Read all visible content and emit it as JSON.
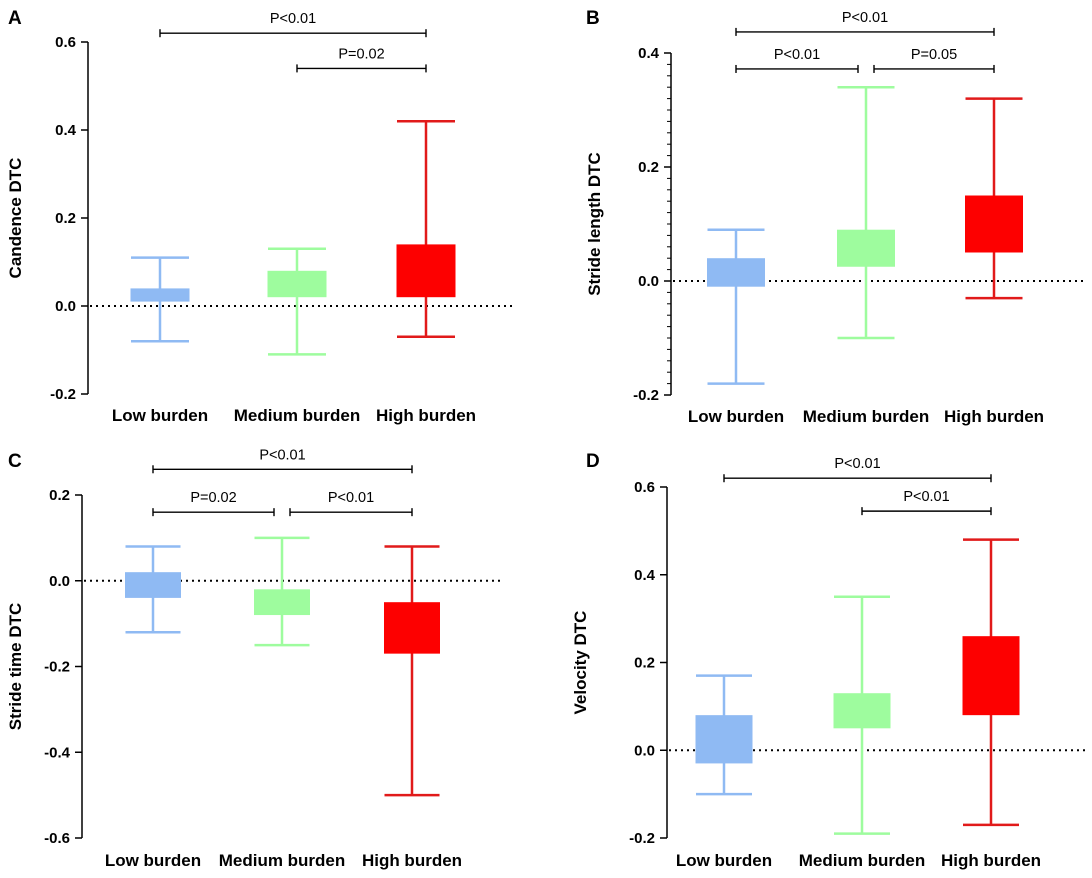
{
  "figure": {
    "colors": {
      "low": "#8fbaf3",
      "medium": "#9efc9e",
      "high": "#fd0000",
      "highWhisker": "#e11a1a",
      "axis": "#000000"
    }
  },
  "chart_data": [
    {
      "panel": "A",
      "type": "boxplot",
      "ylabel": "Candence DTC",
      "ylim": [
        -0.2,
        0.6
      ],
      "yticks": [
        {
          "v": -0.2,
          "label": "-0.2"
        },
        {
          "v": 0.0,
          "label": "0.0"
        },
        {
          "v": 0.2,
          "label": "0.2"
        },
        {
          "v": 0.4,
          "label": "0.4"
        },
        {
          "v": 0.6,
          "label": "0.6"
        }
      ],
      "minor_ticks": [],
      "reference_line": 0,
      "categories": [
        "Low burden",
        "Medium burden",
        "High burden"
      ],
      "boxes": [
        {
          "group": "Low burden",
          "color": "low",
          "min": -0.08,
          "q1": 0.01,
          "q3": 0.04,
          "max": 0.11
        },
        {
          "group": "Medium burden",
          "color": "medium",
          "min": -0.11,
          "q1": 0.02,
          "q3": 0.08,
          "max": 0.13
        },
        {
          "group": "High burden",
          "color": "high",
          "min": -0.07,
          "q1": 0.02,
          "q3": 0.14,
          "max": 0.42
        }
      ],
      "significance": [
        {
          "from": 0,
          "to": 2,
          "level": 0.62,
          "label": "P<0.01"
        },
        {
          "from": 1,
          "to": 2,
          "level": 0.54,
          "label": "P=0.02"
        }
      ]
    },
    {
      "panel": "B",
      "type": "boxplot",
      "ylabel": "Stride length DTC",
      "ylim": [
        -0.2,
        0.4
      ],
      "yticks": [
        {
          "v": -0.2,
          "label": "-0.2"
        },
        {
          "v": 0.0,
          "label": "0.0"
        },
        {
          "v": 0.2,
          "label": "0.2"
        },
        {
          "v": 0.4,
          "label": "0.4"
        }
      ],
      "minor_ticks": [
        -0.18,
        -0.16,
        -0.14,
        -0.12,
        -0.1,
        -0.08,
        -0.06,
        -0.04,
        -0.02,
        0.02,
        0.04,
        0.06,
        0.08,
        0.1,
        0.12,
        0.14,
        0.16,
        0.18,
        0.22,
        0.24,
        0.26,
        0.28,
        0.3,
        0.32,
        0.34,
        0.36,
        0.38
      ],
      "reference_line": 0,
      "categories": [
        "Low burden",
        "Medium burden",
        "High burden"
      ],
      "boxes": [
        {
          "group": "Low burden",
          "color": "low",
          "min": -0.18,
          "q1": -0.01,
          "q3": 0.04,
          "max": 0.09
        },
        {
          "group": "Medium burden",
          "color": "medium",
          "min": -0.1,
          "q1": 0.025,
          "q3": 0.09,
          "max": 0.34
        },
        {
          "group": "High burden",
          "color": "high",
          "min": -0.03,
          "q1": 0.05,
          "q3": 0.15,
          "max": 0.32
        }
      ],
      "significance": [
        {
          "from": 0,
          "to": 2,
          "level": 0.437,
          "label": "P<0.01"
        },
        {
          "from": 0,
          "to": 1,
          "level": 0.372,
          "label": "P<0.01"
        },
        {
          "from": 1,
          "to": 2,
          "level": 0.372,
          "label": "P=0.05"
        }
      ]
    },
    {
      "panel": "C",
      "type": "boxplot",
      "ylabel": "Stride time DTC",
      "ylim": [
        -0.6,
        0.2
      ],
      "yticks": [
        {
          "v": -0.6,
          "label": "-0.6"
        },
        {
          "v": -0.4,
          "label": "-0.4"
        },
        {
          "v": -0.2,
          "label": "-0.2"
        },
        {
          "v": 0.0,
          "label": "0.0"
        },
        {
          "v": 0.2,
          "label": "0.2"
        }
      ],
      "minor_ticks": [],
      "reference_line": 0,
      "categories": [
        "Low burden",
        "Medium burden",
        "High burden"
      ],
      "boxes": [
        {
          "group": "Low burden",
          "color": "low",
          "min": -0.12,
          "q1": -0.04,
          "q3": 0.02,
          "max": 0.08
        },
        {
          "group": "Medium burden",
          "color": "medium",
          "min": -0.15,
          "q1": -0.08,
          "q3": -0.02,
          "max": 0.1
        },
        {
          "group": "High burden",
          "color": "high",
          "min": -0.5,
          "q1": -0.17,
          "q3": -0.05,
          "max": 0.08
        }
      ],
      "significance": [
        {
          "from": 0,
          "to": 2,
          "level": 0.26,
          "label": "P<0.01"
        },
        {
          "from": 0,
          "to": 1,
          "level": 0.16,
          "label": "P=0.02"
        },
        {
          "from": 1,
          "to": 2,
          "level": 0.16,
          "label": "P<0.01"
        }
      ]
    },
    {
      "panel": "D",
      "type": "boxplot",
      "ylabel": "Velocity DTC",
      "ylim": [
        -0.2,
        0.6
      ],
      "yticks": [
        {
          "v": -0.2,
          "label": "-0.2"
        },
        {
          "v": 0.0,
          "label": "0.0"
        },
        {
          "v": 0.2,
          "label": "0.2"
        },
        {
          "v": 0.4,
          "label": "0.4"
        },
        {
          "v": 0.6,
          "label": "0.6"
        }
      ],
      "minor_ticks": [],
      "reference_line": 0,
      "categories": [
        "Low burden",
        "Medium burden",
        "High burden"
      ],
      "boxes": [
        {
          "group": "Low burden",
          "color": "low",
          "min": -0.1,
          "q1": -0.03,
          "q3": 0.08,
          "max": 0.17
        },
        {
          "group": "Medium burden",
          "color": "medium",
          "min": -0.19,
          "q1": 0.05,
          "q3": 0.13,
          "max": 0.35
        },
        {
          "group": "High burden",
          "color": "high",
          "min": -0.17,
          "q1": 0.08,
          "q3": 0.26,
          "max": 0.48
        }
      ],
      "significance": [
        {
          "from": 0,
          "to": 2,
          "level": 0.62,
          "label": "P<0.01"
        },
        {
          "from": 1,
          "to": 2,
          "level": 0.545,
          "label": "P<0.01"
        }
      ]
    }
  ]
}
